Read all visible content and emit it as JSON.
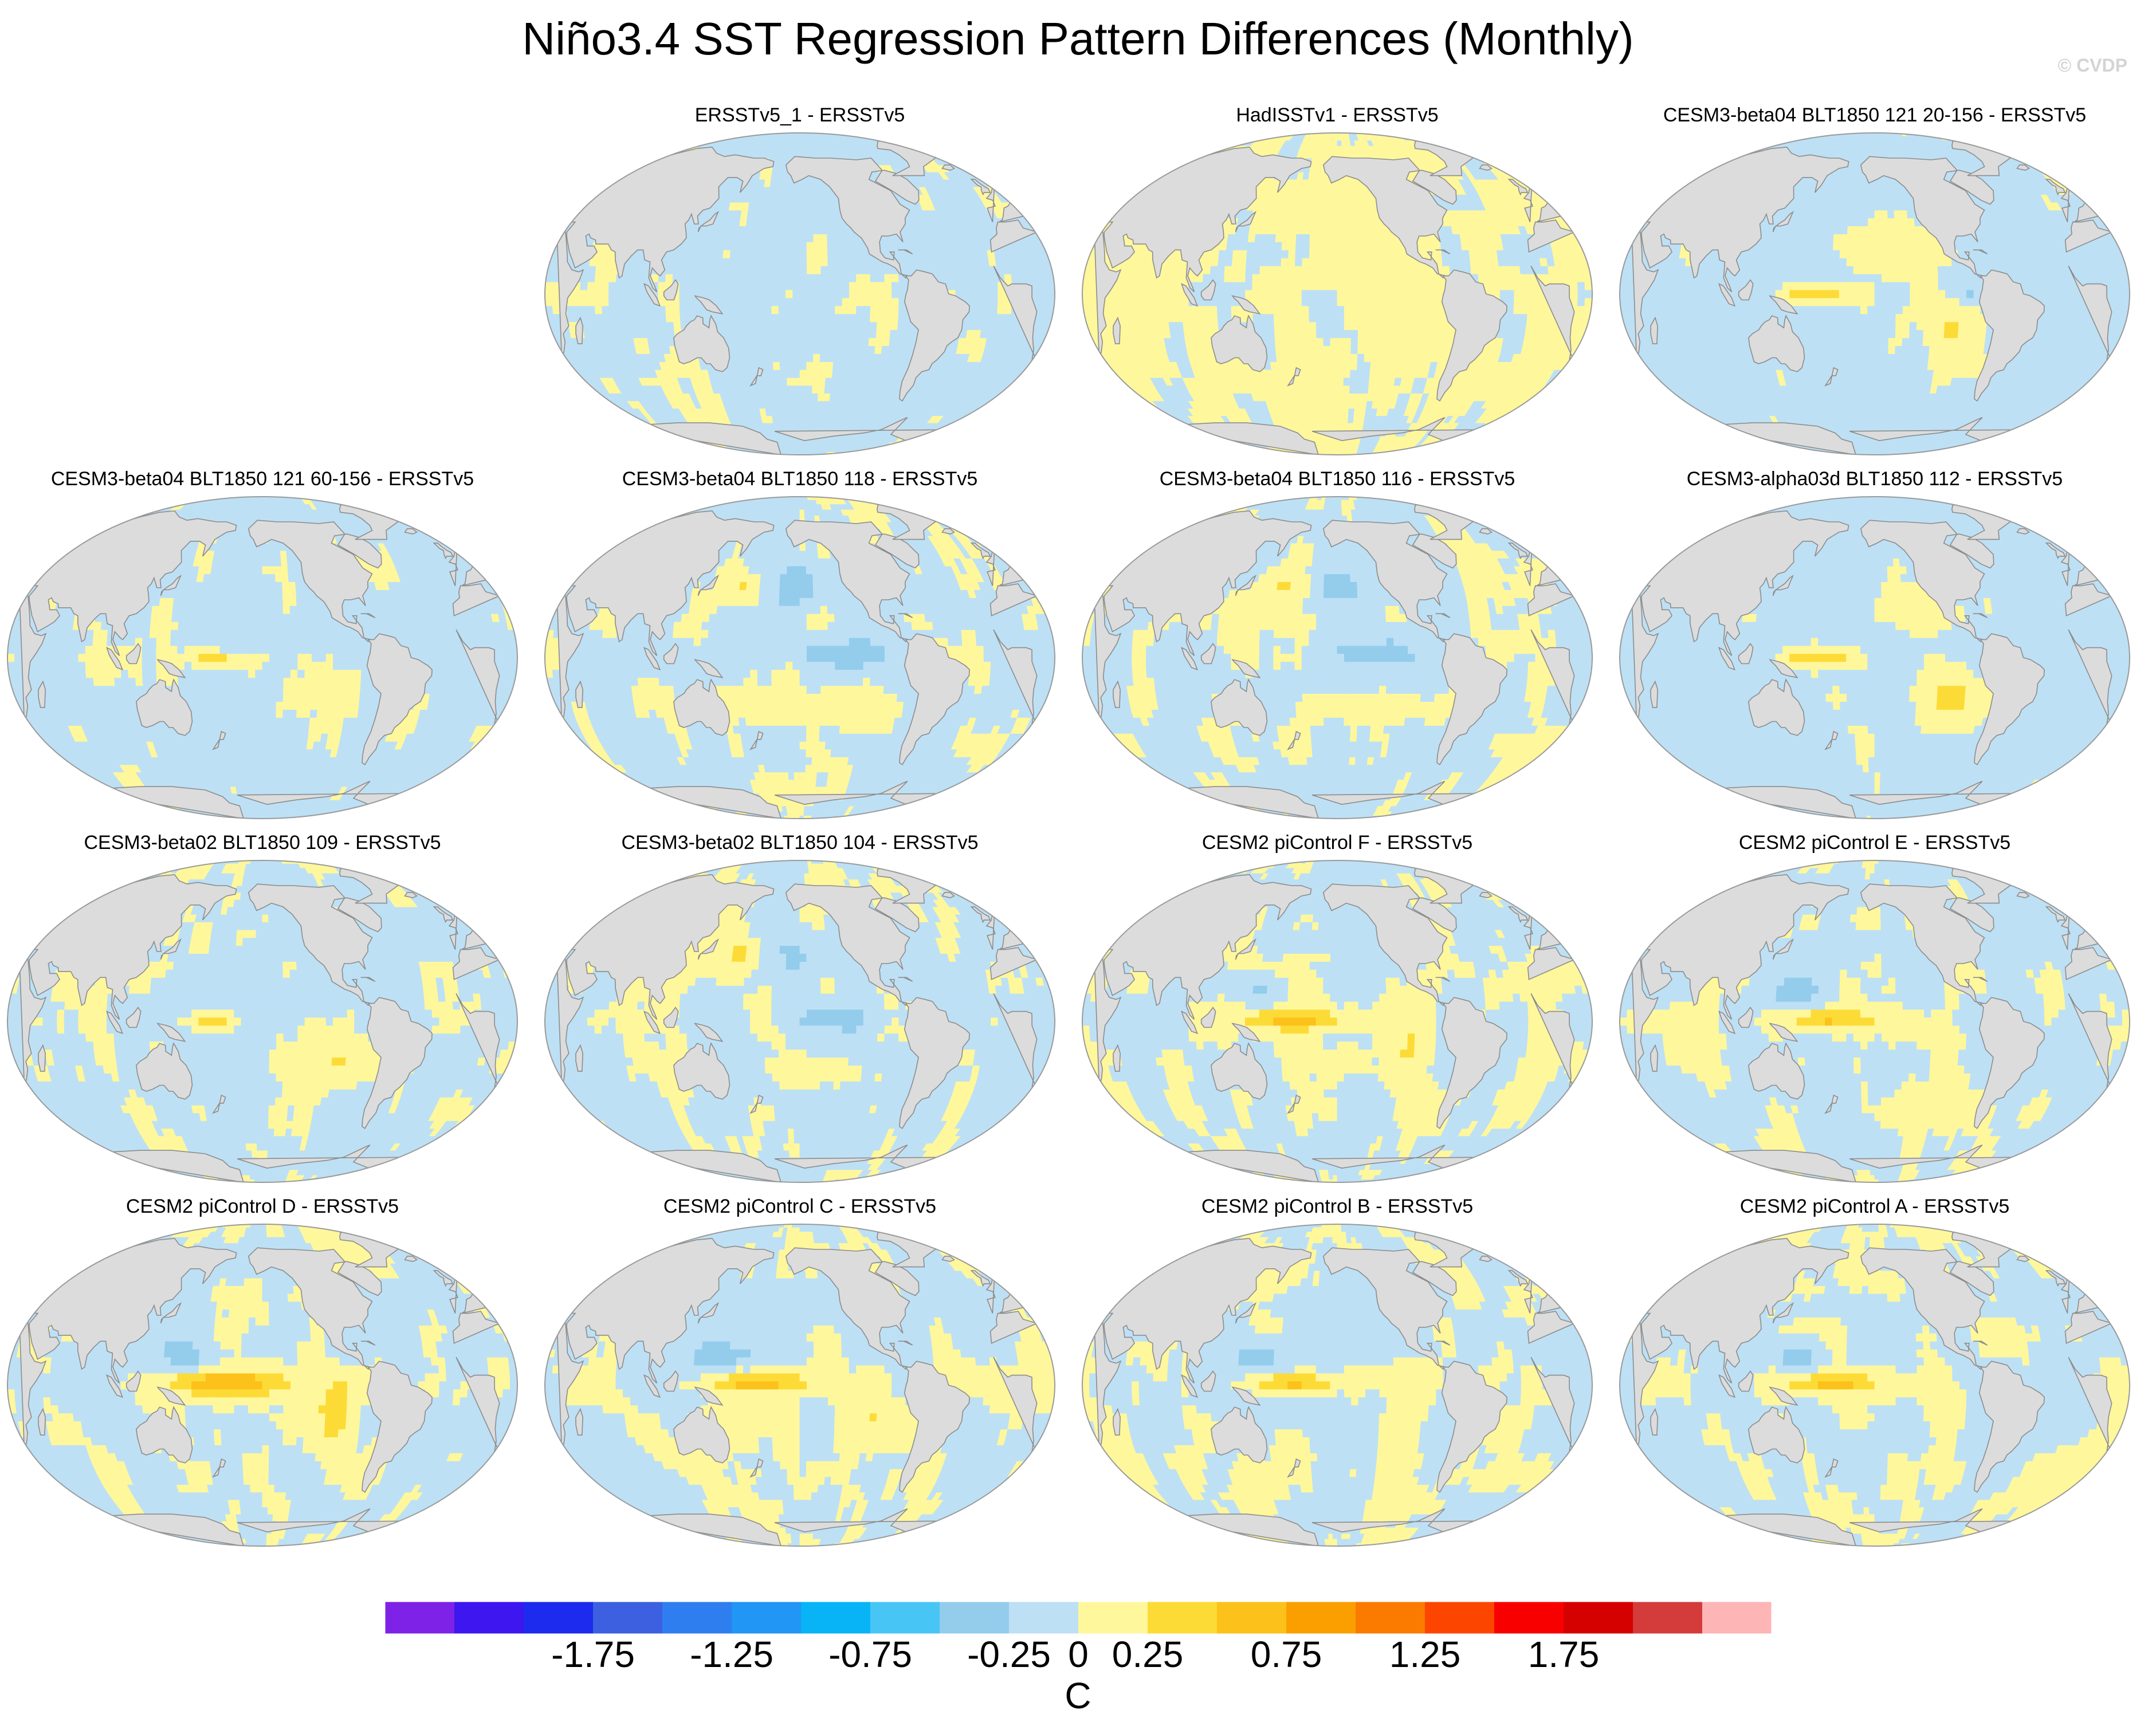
{
  "title": "Niño3.4 SST Regression Pattern Differences (Monthly)",
  "watermark": "© CVDP",
  "colors": {
    "land": "#dcdcdc",
    "coast": "#8c8c8c",
    "levels": [
      "#7e22e8",
      "#3d16f0",
      "#1c2bee",
      "#3d60e0",
      "#2f7ef0",
      "#2196f5",
      "#08b4f6",
      "#47c6f5",
      "#94ccec",
      "#bde0f5",
      "#fff79c",
      "#fddb37",
      "#fcc11a",
      "#fb9f00",
      "#fb7b00",
      "#fc4600",
      "#f90000",
      "#d50000",
      "#d43c3c",
      "#feb5b5"
    ]
  },
  "chart_data": {
    "type": "map-panels",
    "projection": "robinson",
    "panels": [
      {
        "title": "ERSSTv5_1 - ERSSTv5",
        "pattern": "weak"
      },
      {
        "title": "HadISSTv1 - ERSSTv5",
        "pattern": "weak-mixed"
      },
      {
        "title": "CESM3-beta04 BLT1850 121 20-156 - ERSSTv5",
        "pattern": "enso-warm"
      },
      {
        "title": "CESM3-beta04 BLT1850 121 60-156 - ERSSTv5",
        "pattern": "mixed"
      },
      {
        "title": "CESM3-beta04 BLT1850 118 - ERSSTv5",
        "pattern": "cool-east"
      },
      {
        "title": "CESM3-beta04 BLT1850 116 - ERSSTv5",
        "pattern": "cool-east"
      },
      {
        "title": "CESM3-alpha03d BLT1850 112 - ERSSTv5",
        "pattern": "enso-warm"
      },
      {
        "title": "CESM3-beta02 BLT1850 109 - ERSSTv5",
        "pattern": "mixed"
      },
      {
        "title": "CESM3-beta02 BLT1850 104 - ERSSTv5",
        "pattern": "cool-east"
      },
      {
        "title": "CESM2 piControl F - ERSSTv5",
        "pattern": "cesm2"
      },
      {
        "title": "CESM2 piControl E - ERSSTv5",
        "pattern": "cesm2"
      },
      {
        "title": "CESM2 piControl D - ERSSTv5",
        "pattern": "cesm2-strong"
      },
      {
        "title": "CESM2 piControl C - ERSSTv5",
        "pattern": "cesm2"
      },
      {
        "title": "CESM2 piControl B - ERSSTv5",
        "pattern": "cesm2"
      },
      {
        "title": "CESM2 piControl A - ERSSTv5",
        "pattern": "cesm2"
      }
    ],
    "colorbar": {
      "min": -2.25,
      "max": 2.25,
      "step": 0.25,
      "tick_labels": [
        "-1.75",
        "-1.25",
        "-0.75",
        "-0.25",
        "0",
        "0.25",
        "0.75",
        "1.25",
        "1.75"
      ],
      "tick_values": [
        -1.75,
        -1.25,
        -0.75,
        -0.25,
        0,
        0.25,
        0.75,
        1.25,
        1.75
      ],
      "unit": "C"
    }
  }
}
